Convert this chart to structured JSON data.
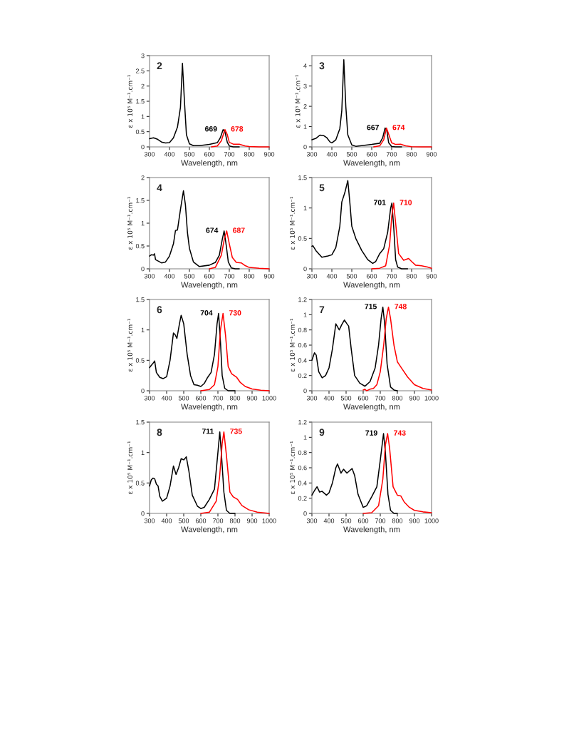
{
  "chart_data": [
    {
      "type": "line",
      "title": "2",
      "xlabel": "Wavelength, nm",
      "ylabel": "ε x 10⁵ M⁻¹.cm⁻¹",
      "xlim": [
        300,
        900
      ],
      "xticks": [
        300,
        400,
        500,
        600,
        700,
        800,
        900
      ],
      "ylim": [
        0,
        3
      ],
      "yticks": [
        0,
        0.5,
        1,
        1.5,
        2,
        2.5,
        3
      ],
      "series": [
        {
          "color": "#000000",
          "x": [
            300,
            320,
            340,
            360,
            380,
            400,
            420,
            440,
            455,
            465,
            475,
            485,
            500,
            520,
            550,
            600,
            640,
            655,
            669,
            678,
            690,
            700,
            720,
            750
          ],
          "values": [
            0.27,
            0.3,
            0.25,
            0.16,
            0.13,
            0.14,
            0.3,
            0.65,
            1.3,
            2.75,
            1.5,
            0.4,
            0.1,
            0.04,
            0.04,
            0.08,
            0.14,
            0.3,
            0.57,
            0.5,
            0.15,
            0.03,
            0,
            0
          ]
        },
        {
          "color": "#ff0000",
          "x": [
            610,
            640,
            660,
            678,
            690,
            700,
            720,
            750,
            780,
            800,
            850,
            900
          ],
          "values": [
            0,
            0.03,
            0.2,
            0.57,
            0.4,
            0.15,
            0.09,
            0.09,
            0.03,
            0.01,
            0,
            0
          ]
        }
      ],
      "annotations": [
        {
          "text": "669",
          "x": 669,
          "y": 0.57
        },
        {
          "text": "678",
          "x": 678,
          "y": 0.57
        }
      ]
    },
    {
      "type": "line",
      "title": "3",
      "xlabel": "Wavelength, nm",
      "ylabel": "ε x 10⁵ M⁻¹.cm⁻¹",
      "xlim": [
        300,
        900
      ],
      "xticks": [
        300,
        400,
        500,
        600,
        700,
        800,
        900
      ],
      "ylim": [
        0,
        4.5
      ],
      "yticks": [
        0,
        1,
        2,
        3,
        4
      ],
      "series": [
        {
          "color": "#000000",
          "x": [
            300,
            320,
            340,
            360,
            375,
            390,
            400,
            420,
            440,
            450,
            460,
            470,
            480,
            500,
            520,
            600,
            640,
            655,
            667,
            676,
            685,
            700,
            720,
            750
          ],
          "values": [
            0.35,
            0.42,
            0.58,
            0.55,
            0.45,
            0.25,
            0.2,
            0.35,
            0.9,
            1.8,
            4.3,
            2.0,
            0.6,
            0.1,
            0.03,
            0.12,
            0.18,
            0.45,
            0.93,
            0.8,
            0.2,
            0.02,
            0,
            0
          ]
        },
        {
          "color": "#ff0000",
          "x": [
            610,
            640,
            660,
            674,
            686,
            700,
            720,
            745,
            770,
            800,
            850,
            900
          ],
          "values": [
            0,
            0.05,
            0.35,
            0.93,
            0.6,
            0.2,
            0.12,
            0.13,
            0.05,
            0.01,
            0,
            0
          ]
        }
      ],
      "annotations": [
        {
          "text": "667",
          "x": 667,
          "y": 0.93
        },
        {
          "text": "674",
          "x": 674,
          "y": 0.93
        }
      ]
    },
    {
      "type": "line",
      "title": "4",
      "xlabel": "Wavelength, nm",
      "ylabel": "ε x 10⁵ M⁻¹.cm⁻¹",
      "xlim": [
        300,
        900
      ],
      "xticks": [
        300,
        400,
        500,
        600,
        700,
        800,
        900
      ],
      "ylim": [
        0,
        2
      ],
      "yticks": [
        0,
        0.5,
        1,
        1.5,
        2
      ],
      "series": [
        {
          "color": "#000000",
          "x": [
            300,
            310,
            320,
            325,
            330,
            360,
            380,
            400,
            420,
            430,
            440,
            455,
            470,
            480,
            490,
            500,
            520,
            550,
            600,
            630,
            650,
            665,
            674,
            685,
            695,
            710,
            730,
            750
          ],
          "values": [
            0.28,
            0.31,
            0.3,
            0.33,
            0.2,
            0.13,
            0.15,
            0.28,
            0.55,
            0.84,
            0.85,
            1.3,
            1.71,
            1.4,
            0.8,
            0.45,
            0.15,
            0.05,
            0.08,
            0.14,
            0.3,
            0.65,
            0.83,
            0.5,
            0.15,
            0.02,
            0,
            0
          ]
        },
        {
          "color": "#ff0000",
          "x": [
            600,
            630,
            660,
            675,
            687,
            700,
            715,
            735,
            760,
            780,
            800,
            850,
            900
          ],
          "values": [
            0,
            0.03,
            0.3,
            0.65,
            0.83,
            0.55,
            0.25,
            0.14,
            0.13,
            0.07,
            0.03,
            0.01,
            0
          ]
        }
      ],
      "annotations": [
        {
          "text": "674",
          "x": 674,
          "y": 0.83
        },
        {
          "text": "687",
          "x": 687,
          "y": 0.83
        }
      ]
    },
    {
      "type": "line",
      "title": "5",
      "xlabel": "Wavelength, nm",
      "ylabel": "ε x 10⁵ M⁻¹.cm⁻¹",
      "xlim": [
        300,
        900
      ],
      "xticks": [
        300,
        400,
        500,
        600,
        700,
        800,
        900
      ],
      "ylim": [
        0,
        1.5
      ],
      "yticks": [
        0,
        0.5,
        1,
        1.5
      ],
      "series": [
        {
          "color": "#000000",
          "x": [
            300,
            305,
            320,
            350,
            380,
            400,
            420,
            440,
            450,
            465,
            480,
            490,
            500,
            520,
            550,
            580,
            605,
            620,
            640,
            660,
            680,
            695,
            701,
            710,
            720,
            730,
            750,
            780
          ],
          "values": [
            0.37,
            0.38,
            0.3,
            0.19,
            0.21,
            0.23,
            0.35,
            0.7,
            1.1,
            1.25,
            1.45,
            1.1,
            0.7,
            0.5,
            0.3,
            0.15,
            0.09,
            0.12,
            0.25,
            0.33,
            0.6,
            1.0,
            1.08,
            0.7,
            0.15,
            0.03,
            0,
            0
          ]
        },
        {
          "color": "#ff0000",
          "x": [
            600,
            640,
            670,
            690,
            700,
            710,
            720,
            735,
            760,
            785,
            800,
            820,
            850,
            880,
            900
          ],
          "values": [
            0,
            0.01,
            0.05,
            0.4,
            0.85,
            1.08,
            0.75,
            0.25,
            0.14,
            0.17,
            0.12,
            0.06,
            0.05,
            0.03,
            0.01
          ]
        }
      ],
      "annotations": [
        {
          "text": "701",
          "x": 701,
          "y": 1.08
        },
        {
          "text": "710",
          "x": 710,
          "y": 1.08
        }
      ]
    },
    {
      "type": "line",
      "title": "6",
      "xlabel": "Wavelength, nm",
      "ylabel": "ε x 10⁵ M⁻¹.cm⁻¹",
      "xlim": [
        300,
        1000
      ],
      "xticks": [
        300,
        400,
        500,
        600,
        700,
        800,
        900,
        1000
      ],
      "ylim": [
        0,
        1.5
      ],
      "yticks": [
        0,
        0.5,
        1,
        1.5
      ],
      "series": [
        {
          "color": "#000000",
          "x": [
            300,
            320,
            330,
            340,
            360,
            380,
            400,
            420,
            440,
            450,
            460,
            475,
            485,
            500,
            520,
            540,
            560,
            580,
            600,
            620,
            640,
            660,
            680,
            695,
            704,
            715,
            725,
            740,
            760,
            800
          ],
          "values": [
            0.38,
            0.45,
            0.49,
            0.3,
            0.22,
            0.2,
            0.23,
            0.5,
            0.95,
            0.92,
            0.86,
            1.1,
            1.24,
            1.1,
            0.6,
            0.25,
            0.1,
            0.09,
            0.07,
            0.12,
            0.22,
            0.3,
            0.6,
            1.1,
            1.27,
            0.8,
            0.25,
            0.04,
            0,
            0
          ]
        },
        {
          "color": "#ff0000",
          "x": [
            600,
            650,
            680,
            700,
            715,
            730,
            745,
            760,
            780,
            810,
            830,
            860,
            900,
            950,
            1000
          ],
          "values": [
            0,
            0.02,
            0.1,
            0.4,
            1.0,
            1.27,
            0.9,
            0.4,
            0.28,
            0.22,
            0.14,
            0.07,
            0.03,
            0.01,
            0
          ]
        }
      ],
      "annotations": [
        {
          "text": "704",
          "x": 704,
          "y": 1.27
        },
        {
          "text": "730",
          "x": 730,
          "y": 1.27
        }
      ]
    },
    {
      "type": "line",
      "title": "7",
      "xlabel": "Wavelength, nm",
      "ylabel": "ε x 10⁵ M⁻¹.cm⁻¹",
      "xlim": [
        300,
        1000
      ],
      "xticks": [
        300,
        400,
        500,
        600,
        700,
        800,
        900,
        1000
      ],
      "ylim": [
        0,
        1.2
      ],
      "yticks": [
        0,
        0.2,
        0.4,
        0.6,
        0.8,
        1,
        1.2
      ],
      "series": [
        {
          "color": "#000000",
          "x": [
            300,
            315,
            325,
            340,
            360,
            380,
            400,
            420,
            440,
            460,
            475,
            490,
            505,
            515,
            530,
            550,
            580,
            610,
            640,
            670,
            690,
            705,
            715,
            725,
            740,
            760,
            780,
            800
          ],
          "values": [
            0.4,
            0.5,
            0.47,
            0.25,
            0.17,
            0.2,
            0.3,
            0.55,
            0.88,
            0.8,
            0.87,
            0.93,
            0.88,
            0.85,
            0.55,
            0.2,
            0.1,
            0.06,
            0.12,
            0.3,
            0.6,
            0.95,
            1.1,
            0.9,
            0.35,
            0.05,
            0.01,
            0
          ]
        },
        {
          "color": "#ff0000",
          "x": [
            600,
            610,
            620,
            640,
            660,
            680,
            700,
            720,
            735,
            748,
            760,
            780,
            800,
            830,
            860,
            900,
            950,
            1000
          ],
          "values": [
            0.01,
            0.02,
            0,
            0.02,
            0.03,
            0.08,
            0.25,
            0.6,
            0.95,
            1.1,
            0.95,
            0.6,
            0.38,
            0.28,
            0.18,
            0.08,
            0.03,
            0.01
          ]
        }
      ],
      "annotations": [
        {
          "text": "715",
          "x": 715,
          "y": 1.1
        },
        {
          "text": "748",
          "x": 748,
          "y": 1.1
        }
      ]
    },
    {
      "type": "line",
      "title": "8",
      "xlabel": "Wavelength, nm",
      "ylabel": "ε x 10⁵ M⁻¹.cm⁻¹",
      "xlim": [
        300,
        1000
      ],
      "xticks": [
        300,
        400,
        500,
        600,
        700,
        800,
        900,
        1000
      ],
      "ylim": [
        0,
        1.5
      ],
      "yticks": [
        0,
        0.5,
        1,
        1.5
      ],
      "series": [
        {
          "color": "#000000",
          "x": [
            300,
            310,
            320,
            330,
            340,
            350,
            360,
            375,
            400,
            420,
            440,
            455,
            470,
            485,
            500,
            515,
            530,
            550,
            580,
            600,
            620,
            650,
            680,
            700,
            711,
            720,
            735,
            750,
            770,
            800
          ],
          "values": [
            0.45,
            0.55,
            0.58,
            0.57,
            0.48,
            0.45,
            0.28,
            0.2,
            0.25,
            0.45,
            0.78,
            0.64,
            0.75,
            0.9,
            0.88,
            0.93,
            0.7,
            0.3,
            0.12,
            0.08,
            0.1,
            0.23,
            0.4,
            1.0,
            1.34,
            1.0,
            0.35,
            0.05,
            0,
            0
          ]
        },
        {
          "color": "#ff0000",
          "x": [
            600,
            650,
            690,
            710,
            725,
            735,
            750,
            770,
            790,
            815,
            840,
            880,
            930,
            1000
          ],
          "values": [
            0,
            0.02,
            0.2,
            0.6,
            1.15,
            1.34,
            0.95,
            0.35,
            0.27,
            0.23,
            0.13,
            0.06,
            0.02,
            0
          ]
        }
      ],
      "annotations": [
        {
          "text": "711",
          "x": 711,
          "y": 1.34
        },
        {
          "text": "735",
          "x": 735,
          "y": 1.34
        }
      ]
    },
    {
      "type": "line",
      "title": "9",
      "xlabel": "Wavelength, nm",
      "ylabel": "ε x 10⁵ M⁻¹.cm⁻¹",
      "xlim": [
        300,
        1000
      ],
      "xticks": [
        300,
        400,
        500,
        600,
        700,
        800,
        900,
        1000
      ],
      "ylim": [
        0,
        1.2
      ],
      "yticks": [
        0,
        0.2,
        0.4,
        0.6,
        0.8,
        1,
        1.2
      ],
      "series": [
        {
          "color": "#000000",
          "x": [
            300,
            315,
            330,
            345,
            360,
            385,
            400,
            420,
            440,
            450,
            470,
            485,
            505,
            520,
            535,
            550,
            570,
            600,
            620,
            650,
            680,
            700,
            719,
            730,
            745,
            760,
            780,
            800
          ],
          "values": [
            0.24,
            0.3,
            0.35,
            0.28,
            0.29,
            0.24,
            0.27,
            0.4,
            0.6,
            0.65,
            0.53,
            0.58,
            0.53,
            0.56,
            0.59,
            0.5,
            0.25,
            0.08,
            0.1,
            0.22,
            0.35,
            0.7,
            1.05,
            0.8,
            0.25,
            0.04,
            0,
            0
          ]
        },
        {
          "color": "#ff0000",
          "x": [
            600,
            650,
            690,
            715,
            730,
            743,
            755,
            775,
            800,
            820,
            840,
            870,
            900,
            950,
            1000
          ],
          "values": [
            0,
            0.01,
            0.1,
            0.45,
            0.9,
            1.05,
            0.85,
            0.35,
            0.24,
            0.23,
            0.15,
            0.08,
            0.04,
            0.02,
            0.01
          ]
        }
      ],
      "annotations": [
        {
          "text": "719",
          "x": 719,
          "y": 1.05
        },
        {
          "text": "743",
          "x": 743,
          "y": 1.05
        }
      ]
    }
  ]
}
